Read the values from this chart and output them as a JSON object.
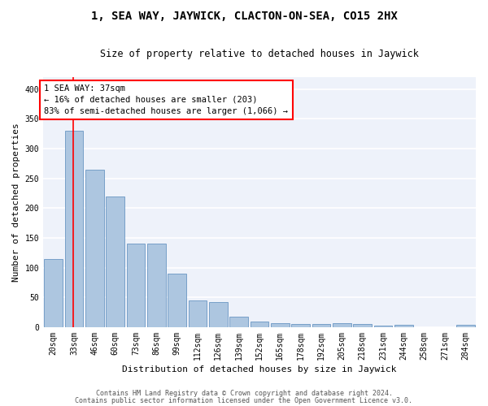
{
  "title": "1, SEA WAY, JAYWICK, CLACTON-ON-SEA, CO15 2HX",
  "subtitle": "Size of property relative to detached houses in Jaywick",
  "xlabel": "Distribution of detached houses by size in Jaywick",
  "ylabel": "Number of detached properties",
  "categories": [
    "20sqm",
    "33sqm",
    "46sqm",
    "60sqm",
    "73sqm",
    "86sqm",
    "99sqm",
    "112sqm",
    "126sqm",
    "139sqm",
    "152sqm",
    "165sqm",
    "178sqm",
    "192sqm",
    "205sqm",
    "218sqm",
    "231sqm",
    "244sqm",
    "258sqm",
    "271sqm",
    "284sqm"
  ],
  "values": [
    115,
    330,
    265,
    220,
    140,
    140,
    90,
    45,
    42,
    18,
    9,
    7,
    6,
    6,
    7,
    6,
    3,
    4,
    0,
    0,
    4
  ],
  "bar_color": "#adc6e0",
  "bar_edge_color": "#5588bb",
  "highlight_line_color": "red",
  "annotation_text": "1 SEA WAY: 37sqm\n← 16% of detached houses are smaller (203)\n83% of semi-detached houses are larger (1,066) →",
  "annotation_box_color": "white",
  "annotation_box_edge_color": "red",
  "ylim": [
    0,
    420
  ],
  "yticks": [
    0,
    50,
    100,
    150,
    200,
    250,
    300,
    350,
    400
  ],
  "background_color": "#eef2fa",
  "grid_color": "white",
  "footer_line1": "Contains HM Land Registry data © Crown copyright and database right 2024.",
  "footer_line2": "Contains public sector information licensed under the Open Government Licence v3.0.",
  "title_fontsize": 10,
  "subtitle_fontsize": 8.5,
  "axis_label_fontsize": 8,
  "tick_fontsize": 7,
  "annotation_fontsize": 7.5,
  "footer_fontsize": 6
}
